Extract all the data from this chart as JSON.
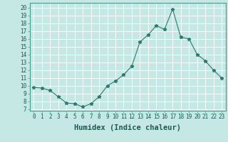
{
  "x": [
    0,
    1,
    2,
    3,
    4,
    5,
    6,
    7,
    8,
    9,
    10,
    11,
    12,
    13,
    14,
    15,
    16,
    17,
    18,
    19,
    20,
    21,
    22,
    23
  ],
  "y": [
    9.8,
    9.7,
    9.4,
    8.6,
    7.8,
    7.7,
    7.3,
    7.7,
    8.6,
    10.0,
    10.6,
    11.4,
    12.5,
    15.6,
    16.5,
    17.7,
    17.2,
    19.8,
    16.2,
    16.0,
    14.0,
    13.2,
    12.0,
    11.0
  ],
  "xlabel": "Humidex (Indice chaleur)",
  "ylabel_ticks": [
    7,
    8,
    9,
    10,
    11,
    12,
    13,
    14,
    15,
    16,
    17,
    18,
    19,
    20
  ],
  "ylim": [
    6.8,
    20.6
  ],
  "xlim": [
    -0.5,
    23.5
  ],
  "line_color": "#2d7b6e",
  "marker": "*",
  "marker_size": 3.5,
  "bg_color": "#c5e8e5",
  "grid_color": "#ffffff",
  "tick_fontsize": 5.5,
  "xlabel_fontsize": 7.5
}
